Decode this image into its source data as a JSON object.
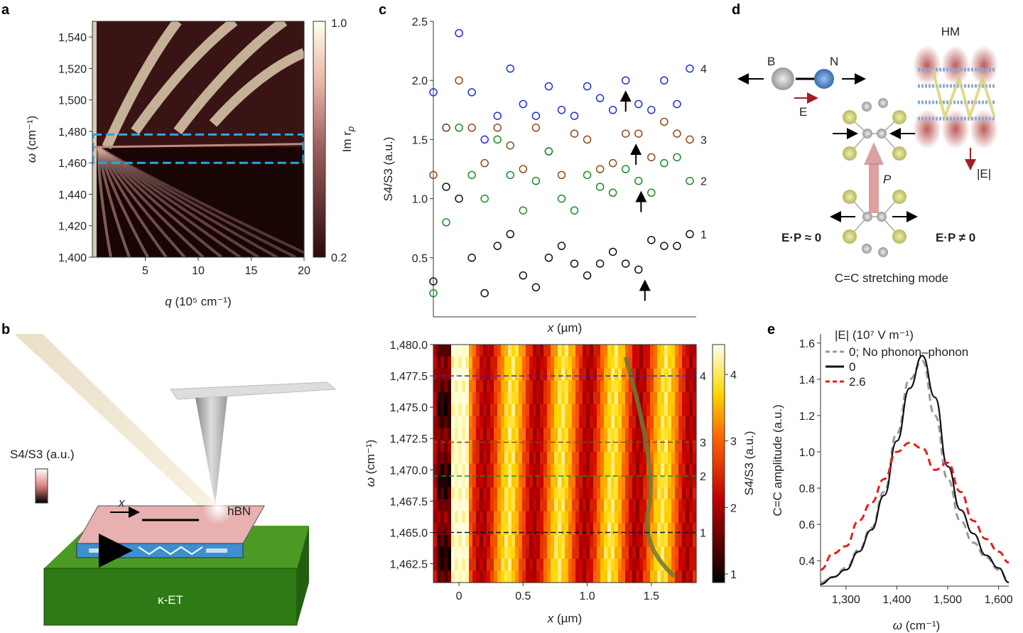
{
  "panels": {
    "a": "a",
    "b": "b",
    "c": "c",
    "d": "d",
    "e": "e"
  },
  "chart_data": [
    {
      "id": "a",
      "type": "heatmap",
      "xlabel": "q (10^5 cm^-1)",
      "xlabel_var": "q",
      "xlabel_unit": "(10⁵ cm⁻¹)",
      "ylabel_var": "ω",
      "ylabel_unit": "(cm⁻¹)",
      "xlim": [
        0,
        20
      ],
      "ylim": [
        1400,
        1550
      ],
      "xticks": [
        "5",
        "10",
        "15",
        "20"
      ],
      "xtick_values": [
        5,
        10,
        15,
        20
      ],
      "yticks": [
        "1,400",
        "1,420",
        "1,440",
        "1,460",
        "1,480",
        "1,500",
        "1,520",
        "1,540"
      ],
      "ytick_values": [
        1400,
        1420,
        1440,
        1460,
        1480,
        1500,
        1520,
        1540
      ],
      "colorbar": {
        "label": "Im r",
        "label_sub": "p",
        "min_label": "0.2",
        "max_label": "1.0",
        "range": [
          0.2,
          1.0
        ]
      },
      "highlight_band": {
        "omega_range": [
          1460,
          1478
        ],
        "color": "#29a8e0"
      }
    },
    {
      "id": "c-top",
      "type": "scatter",
      "xlabel_var": "x",
      "xlabel_unit": "(µm)",
      "ylabel": "S4/S3 (a.u.)",
      "xlim": [
        -0.2,
        1.85
      ],
      "ylim": [
        0,
        2.5
      ],
      "yticks": [
        "0.5",
        "1.0",
        "1.5",
        "2.0",
        "2.5"
      ],
      "ytick_values": [
        0.5,
        1.0,
        1.5,
        2.0,
        2.5
      ],
      "x": [
        -0.2,
        -0.1,
        0,
        0.1,
        0.2,
        0.3,
        0.4,
        0.5,
        0.6,
        0.7,
        0.8,
        0.9,
        1.0,
        1.1,
        1.2,
        1.3,
        1.4,
        1.5,
        1.6,
        1.7,
        1.8
      ],
      "series": [
        {
          "name": "4",
          "color": "#1f2fd0",
          "arrow_x": 1.3,
          "values": [
            1.9,
            1.6,
            2.4,
            1.9,
            1.5,
            1.7,
            2.1,
            1.8,
            1.7,
            1.95,
            1.75,
            1.7,
            1.95,
            1.85,
            1.75,
            2.0,
            1.8,
            1.75,
            2.0,
            1.8,
            2.1
          ]
        },
        {
          "name": "3",
          "color": "#8b4a1a",
          "arrow_x": 1.38,
          "values": [
            1.2,
            1.6,
            2.0,
            1.6,
            1.3,
            1.6,
            1.45,
            1.25,
            1.6,
            1.4,
            1.2,
            1.55,
            1.5,
            1.25,
            1.3,
            1.55,
            1.55,
            1.35,
            1.65,
            1.55,
            1.5
          ]
        },
        {
          "name": "2",
          "color": "#1f8a2a",
          "arrow_x": 1.42,
          "values": [
            0.2,
            0.8,
            1.6,
            1.2,
            1.0,
            1.5,
            1.2,
            0.9,
            1.15,
            1.4,
            1.0,
            0.9,
            1.2,
            1.1,
            1.05,
            1.25,
            1.15,
            1.05,
            1.3,
            1.35,
            1.15
          ]
        },
        {
          "name": "1",
          "color": "#111111",
          "arrow_x": 1.45,
          "values": [
            0.3,
            1.1,
            1.0,
            0.5,
            0.2,
            0.6,
            0.7,
            0.35,
            0.25,
            0.5,
            0.6,
            0.45,
            0.35,
            0.45,
            0.55,
            0.45,
            0.4,
            0.65,
            0.6,
            0.6,
            0.7
          ]
        }
      ]
    },
    {
      "id": "c-bottom",
      "type": "heatmap",
      "xlabel_var": "x",
      "xlabel_unit": "(µm)",
      "ylabel_var": "ω",
      "ylabel_unit": "(cm⁻¹)",
      "xlim": [
        -0.2,
        1.85
      ],
      "ylim": [
        1461,
        1480
      ],
      "xticks": [
        "0",
        "0.5",
        "1.0",
        "1.5"
      ],
      "xtick_values": [
        0,
        0.5,
        1.0,
        1.5
      ],
      "yticks": [
        "1,462.5",
        "1,465.0",
        "1,467.5",
        "1,470.0",
        "1,472.5",
        "1,475.0",
        "1,477.5",
        "1,480.0"
      ],
      "ytick_values": [
        1462.5,
        1465,
        1467.5,
        1470,
        1472.5,
        1475,
        1477.5,
        1480
      ],
      "colorbar": {
        "label": "S4/S3 (a.u.)",
        "ticks": [
          "1",
          "2",
          "3",
          "4"
        ],
        "tick_values": [
          1,
          2,
          3,
          4
        ]
      },
      "cut_lines": [
        {
          "label": "4",
          "omega": 1477.5,
          "color": "#1f2fd0"
        },
        {
          "label": "3",
          "omega": 1472.2,
          "color": "#8b4a1a"
        },
        {
          "label": "2",
          "omega": 1469.5,
          "color": "#1f8a2a"
        },
        {
          "label": "1",
          "omega": 1465.0,
          "color": "#111111"
        }
      ],
      "trace_color": "#6b7a3a"
    },
    {
      "id": "e",
      "type": "line",
      "xlabel_var": "ω",
      "xlabel_unit": "(cm⁻¹)",
      "ylabel": "C=C amplitude (a.u.)",
      "xlim": [
        1250,
        1620
      ],
      "ylim": [
        0.26,
        1.65
      ],
      "xticks": [
        "1,300",
        "1,400",
        "1,500",
        "1,600"
      ],
      "xtick_values": [
        1300,
        1400,
        1500,
        1600
      ],
      "yticks": [
        "0.4",
        "0.6",
        "0.8",
        "1.0",
        "1.2",
        "1.4",
        "1.6"
      ],
      "ytick_values": [
        0.4,
        0.6,
        0.8,
        1.0,
        1.2,
        1.4,
        1.6
      ],
      "legend_title": "|E| (10⁷ V m⁻¹)",
      "legend_placement": "top-left",
      "x": [
        1250,
        1275,
        1300,
        1325,
        1350,
        1375,
        1400,
        1425,
        1450,
        1475,
        1500,
        1525,
        1550,
        1575,
        1600,
        1620
      ],
      "series": [
        {
          "name": "0; No phonon–phonon",
          "color": "#999999",
          "style": "dashed",
          "values": [
            0.28,
            0.31,
            0.36,
            0.46,
            0.58,
            0.78,
            1.1,
            1.4,
            1.5,
            1.2,
            0.85,
            0.62,
            0.5,
            0.42,
            0.35,
            0.29
          ]
        },
        {
          "name": "0",
          "color": "#111111",
          "style": "solid",
          "values": [
            0.27,
            0.31,
            0.35,
            0.45,
            0.57,
            0.76,
            1.06,
            1.35,
            1.53,
            1.3,
            0.92,
            0.68,
            0.55,
            0.43,
            0.36,
            0.28
          ]
        },
        {
          "name": "2.6",
          "color": "#e0201b",
          "style": "dashed",
          "values": [
            0.35,
            0.44,
            0.48,
            0.62,
            0.72,
            0.85,
            1.0,
            1.05,
            1.02,
            0.9,
            0.94,
            0.78,
            0.62,
            0.52,
            0.45,
            0.39
          ]
        }
      ]
    }
  ],
  "panel_b": {
    "colorbar_label": "S4/S3 (a.u.)",
    "x_label": "x",
    "hbn_label": "hBN",
    "substrate_label": "κ-ET",
    "substrate_color": "#3c8c1e"
  },
  "panel_d": {
    "b_label": "B",
    "n_label": "N",
    "e_label": "E",
    "hm_label": "HM",
    "abs_e_label": "|E|",
    "p_label": "P",
    "ep_approx": "E·P ≈ 0",
    "ep_neq": "E·P ≠ 0",
    "mode_label": "C=C stretching mode"
  }
}
